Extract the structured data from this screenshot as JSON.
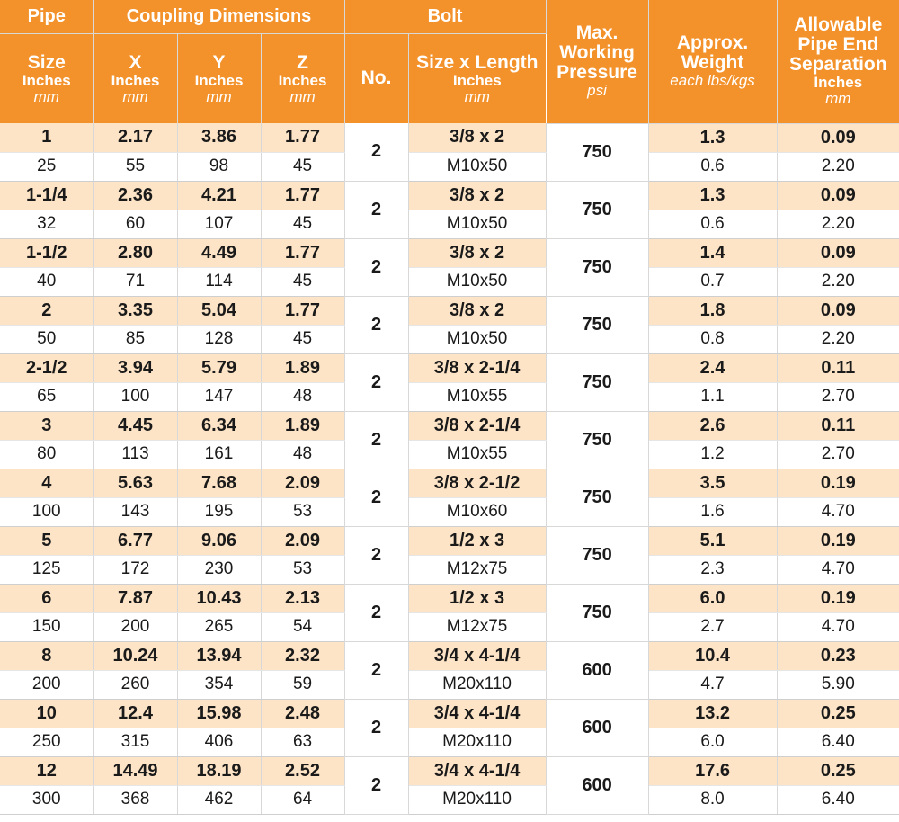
{
  "header": {
    "pipe": "Pipe",
    "coupling_dimensions": "Coupling Dimensions",
    "bolt": "Bolt",
    "max_working_pressure": {
      "line1": "Max.",
      "line2": "Working",
      "line3": "Pressure",
      "unit": "psi"
    },
    "approx_weight": {
      "line1": "Approx.",
      "line2": "Weight",
      "unit": "each lbs/kgs"
    },
    "allowable_separation": {
      "line1": "Allowable",
      "line2": "Pipe End",
      "line3": "Separation",
      "unit_in": "Inches",
      "unit_mm": "mm"
    },
    "size": {
      "label": "Size",
      "unit_in": "Inches",
      "unit_mm": "mm"
    },
    "x": {
      "label": "X",
      "unit_in": "Inches",
      "unit_mm": "mm"
    },
    "y": {
      "label": "Y",
      "unit_in": "Inches",
      "unit_mm": "mm"
    },
    "z": {
      "label": "Z",
      "unit_in": "Inches",
      "unit_mm": "mm"
    },
    "bolt_no": "No.",
    "bolt_size": {
      "label": "Size x Length",
      "unit_in": "Inches",
      "unit_mm": "mm"
    }
  },
  "rows": [
    {
      "size_in": "1",
      "size_mm": "25",
      "x_in": "2.17",
      "x_mm": "55",
      "y_in": "3.86",
      "y_mm": "98",
      "z_in": "1.77",
      "z_mm": "45",
      "bolt_no": "2",
      "bolt_in": "3/8 x 2",
      "bolt_mm": "M10x50",
      "pressure": "750",
      "weight_lbs": "1.3",
      "weight_kgs": "0.6",
      "sep_in": "0.09",
      "sep_mm": "2.20"
    },
    {
      "size_in": "1-1/4",
      "size_mm": "32",
      "x_in": "2.36",
      "x_mm": "60",
      "y_in": "4.21",
      "y_mm": "107",
      "z_in": "1.77",
      "z_mm": "45",
      "bolt_no": "2",
      "bolt_in": "3/8 x 2",
      "bolt_mm": "M10x50",
      "pressure": "750",
      "weight_lbs": "1.3",
      "weight_kgs": "0.6",
      "sep_in": "0.09",
      "sep_mm": "2.20"
    },
    {
      "size_in": "1-1/2",
      "size_mm": "40",
      "x_in": "2.80",
      "x_mm": "71",
      "y_in": "4.49",
      "y_mm": "114",
      "z_in": "1.77",
      "z_mm": "45",
      "bolt_no": "2",
      "bolt_in": "3/8 x 2",
      "bolt_mm": "M10x50",
      "pressure": "750",
      "weight_lbs": "1.4",
      "weight_kgs": "0.7",
      "sep_in": "0.09",
      "sep_mm": "2.20"
    },
    {
      "size_in": "2",
      "size_mm": "50",
      "x_in": "3.35",
      "x_mm": "85",
      "y_in": "5.04",
      "y_mm": "128",
      "z_in": "1.77",
      "z_mm": "45",
      "bolt_no": "2",
      "bolt_in": "3/8 x 2",
      "bolt_mm": "M10x50",
      "pressure": "750",
      "weight_lbs": "1.8",
      "weight_kgs": "0.8",
      "sep_in": "0.09",
      "sep_mm": "2.20"
    },
    {
      "size_in": "2-1/2",
      "size_mm": "65",
      "x_in": "3.94",
      "x_mm": "100",
      "y_in": "5.79",
      "y_mm": "147",
      "z_in": "1.89",
      "z_mm": "48",
      "bolt_no": "2",
      "bolt_in": "3/8 x 2-1/4",
      "bolt_mm": "M10x55",
      "pressure": "750",
      "weight_lbs": "2.4",
      "weight_kgs": "1.1",
      "sep_in": "0.11",
      "sep_mm": "2.70"
    },
    {
      "size_in": "3",
      "size_mm": "80",
      "x_in": "4.45",
      "x_mm": "113",
      "y_in": "6.34",
      "y_mm": "161",
      "z_in": "1.89",
      "z_mm": "48",
      "bolt_no": "2",
      "bolt_in": "3/8 x 2-1/4",
      "bolt_mm": "M10x55",
      "pressure": "750",
      "weight_lbs": "2.6",
      "weight_kgs": "1.2",
      "sep_in": "0.11",
      "sep_mm": "2.70"
    },
    {
      "size_in": "4",
      "size_mm": "100",
      "x_in": "5.63",
      "x_mm": "143",
      "y_in": "7.68",
      "y_mm": "195",
      "z_in": "2.09",
      "z_mm": "53",
      "bolt_no": "2",
      "bolt_in": "3/8 x 2-1/2",
      "bolt_mm": "M10x60",
      "pressure": "750",
      "weight_lbs": "3.5",
      "weight_kgs": "1.6",
      "sep_in": "0.19",
      "sep_mm": "4.70"
    },
    {
      "size_in": "5",
      "size_mm": "125",
      "x_in": "6.77",
      "x_mm": "172",
      "y_in": "9.06",
      "y_mm": "230",
      "z_in": "2.09",
      "z_mm": "53",
      "bolt_no": "2",
      "bolt_in": "1/2 x 3",
      "bolt_mm": "M12x75",
      "pressure": "750",
      "weight_lbs": "5.1",
      "weight_kgs": "2.3",
      "sep_in": "0.19",
      "sep_mm": "4.70"
    },
    {
      "size_in": "6",
      "size_mm": "150",
      "x_in": "7.87",
      "x_mm": "200",
      "y_in": "10.43",
      "y_mm": "265",
      "z_in": "2.13",
      "z_mm": "54",
      "bolt_no": "2",
      "bolt_in": "1/2 x 3",
      "bolt_mm": "M12x75",
      "pressure": "750",
      "weight_lbs": "6.0",
      "weight_kgs": "2.7",
      "sep_in": "0.19",
      "sep_mm": "4.70"
    },
    {
      "size_in": "8",
      "size_mm": "200",
      "x_in": "10.24",
      "x_mm": "260",
      "y_in": "13.94",
      "y_mm": "354",
      "z_in": "2.32",
      "z_mm": "59",
      "bolt_no": "2",
      "bolt_in": "3/4 x 4-1/4",
      "bolt_mm": "M20x110",
      "pressure": "600",
      "weight_lbs": "10.4",
      "weight_kgs": "4.7",
      "sep_in": "0.23",
      "sep_mm": "5.90"
    },
    {
      "size_in": "10",
      "size_mm": "250",
      "x_in": "12.4",
      "x_mm": "315",
      "y_in": "15.98",
      "y_mm": "406",
      "z_in": "2.48",
      "z_mm": "63",
      "bolt_no": "2",
      "bolt_in": "3/4 x 4-1/4",
      "bolt_mm": "M20x110",
      "pressure": "600",
      "weight_lbs": "13.2",
      "weight_kgs": "6.0",
      "sep_in": "0.25",
      "sep_mm": "6.40"
    },
    {
      "size_in": "12",
      "size_mm": "300",
      "x_in": "14.49",
      "x_mm": "368",
      "y_in": "18.19",
      "y_mm": "462",
      "z_in": "2.52",
      "z_mm": "64",
      "bolt_no": "2",
      "bolt_in": "3/4 x 4-1/4",
      "bolt_mm": "M20x110",
      "pressure": "600",
      "weight_lbs": "17.6",
      "weight_kgs": "8.0",
      "sep_in": "0.25",
      "sep_mm": "6.40"
    }
  ]
}
